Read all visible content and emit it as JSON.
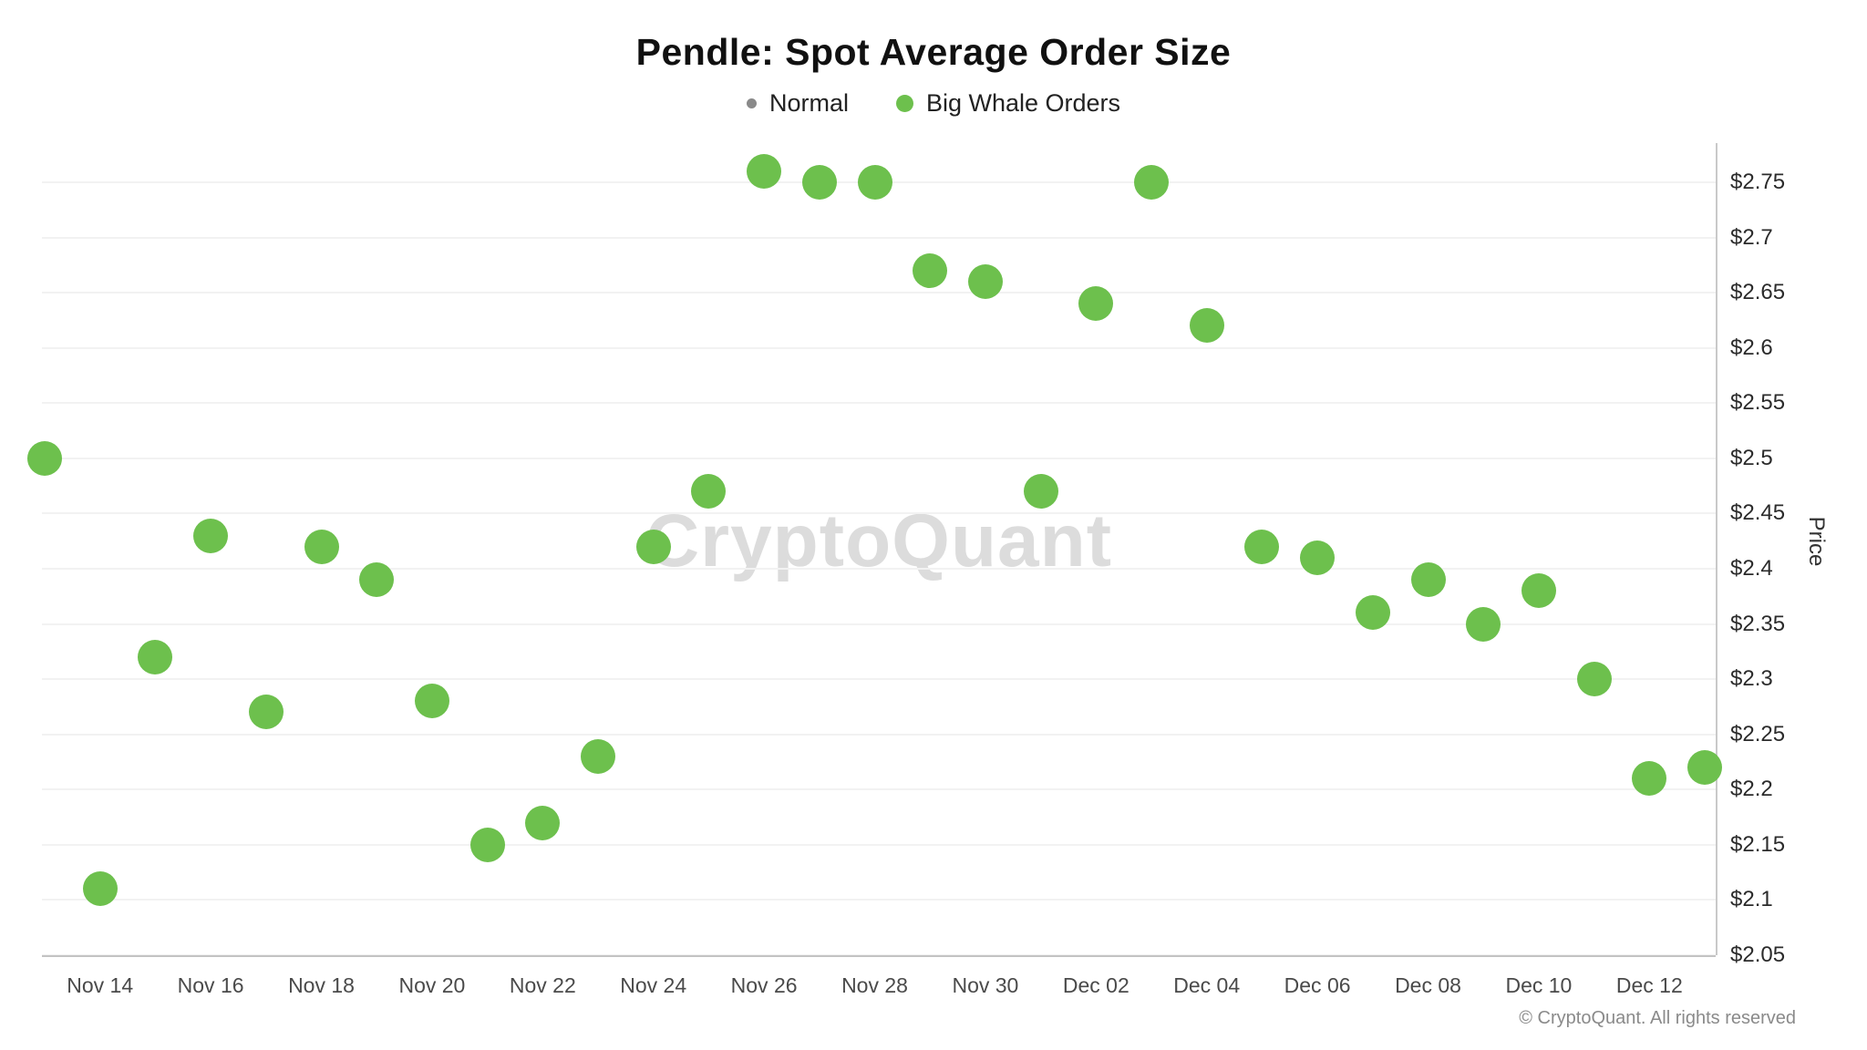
{
  "header": {
    "title": "Pendle: Spot Average Order Size",
    "legend": [
      {
        "label": "Normal",
        "color": "#8a8a8a"
      },
      {
        "label": "Big Whale Orders",
        "color": "#6dc04d"
      }
    ]
  },
  "watermark": "CryptoQuant",
  "footer": {
    "copyright": "© CryptoQuant. All rights reserved"
  },
  "chart_data": {
    "type": "scatter",
    "title": "Pendle: Spot Average Order Size",
    "xlabel": "",
    "ylabel": "Price",
    "grid": true,
    "legend_position": "top",
    "y_axis": {
      "side": "right",
      "min": 2.05,
      "max": 2.75,
      "tick_step": 0.05,
      "tick_prefix": "$",
      "ticks": [
        {
          "value": 2.75,
          "label": "$2.75"
        },
        {
          "value": 2.7,
          "label": "$2.7"
        },
        {
          "value": 2.65,
          "label": "$2.65"
        },
        {
          "value": 2.6,
          "label": "$2.6"
        },
        {
          "value": 2.55,
          "label": "$2.55"
        },
        {
          "value": 2.5,
          "label": "$2.5"
        },
        {
          "value": 2.45,
          "label": "$2.45"
        },
        {
          "value": 2.4,
          "label": "$2.4"
        },
        {
          "value": 2.35,
          "label": "$2.35"
        },
        {
          "value": 2.3,
          "label": "$2.3"
        },
        {
          "value": 2.25,
          "label": "$2.25"
        },
        {
          "value": 2.2,
          "label": "$2.2"
        },
        {
          "value": 2.15,
          "label": "$2.15"
        },
        {
          "value": 2.1,
          "label": "$2.1"
        },
        {
          "value": 2.05,
          "label": "$2.05"
        }
      ]
    },
    "x_domain": [
      "Nov 13",
      "Nov 14",
      "Nov 15",
      "Nov 16",
      "Nov 17",
      "Nov 18",
      "Nov 19",
      "Nov 20",
      "Nov 21",
      "Nov 22",
      "Nov 23",
      "Nov 24",
      "Nov 25",
      "Nov 26",
      "Nov 27",
      "Nov 28",
      "Nov 29",
      "Nov 30",
      "Dec 01",
      "Dec 02",
      "Dec 03",
      "Dec 04",
      "Dec 05",
      "Dec 06",
      "Dec 07",
      "Dec 08",
      "Dec 09",
      "Dec 10",
      "Dec 11",
      "Dec 12",
      "Dec 13"
    ],
    "x_tick_labels": [
      "Nov 14",
      "Nov 16",
      "Nov 18",
      "Nov 20",
      "Nov 22",
      "Nov 24",
      "Nov 26",
      "Nov 28",
      "Nov 30",
      "Dec 02",
      "Dec 04",
      "Dec 06",
      "Dec 08",
      "Dec 10",
      "Dec 12"
    ],
    "series": [
      {
        "name": "Normal",
        "color": "#8a8a8a",
        "marker_size": 10,
        "points": []
      },
      {
        "name": "Big Whale Orders",
        "color": "#6dc04d",
        "marker_size": 38,
        "points": [
          {
            "date": "Nov 13",
            "price": 2.5
          },
          {
            "date": "Nov 14",
            "price": 2.11
          },
          {
            "date": "Nov 15",
            "price": 2.32
          },
          {
            "date": "Nov 16",
            "price": 2.43
          },
          {
            "date": "Nov 17",
            "price": 2.27
          },
          {
            "date": "Nov 18",
            "price": 2.42
          },
          {
            "date": "Nov 19",
            "price": 2.39
          },
          {
            "date": "Nov 20",
            "price": 2.28
          },
          {
            "date": "Nov 21",
            "price": 2.15
          },
          {
            "date": "Nov 22",
            "price": 2.17
          },
          {
            "date": "Nov 23",
            "price": 2.23
          },
          {
            "date": "Nov 24",
            "price": 2.42
          },
          {
            "date": "Nov 25",
            "price": 2.47
          },
          {
            "date": "Nov 26",
            "price": 2.76
          },
          {
            "date": "Nov 27",
            "price": 2.75
          },
          {
            "date": "Nov 28",
            "price": 2.75
          },
          {
            "date": "Nov 29",
            "price": 2.67
          },
          {
            "date": "Nov 30",
            "price": 2.66
          },
          {
            "date": "Dec 01",
            "price": 2.47
          },
          {
            "date": "Dec 02",
            "price": 2.64
          },
          {
            "date": "Dec 03",
            "price": 2.75
          },
          {
            "date": "Dec 04",
            "price": 2.62
          },
          {
            "date": "Dec 05",
            "price": 2.42
          },
          {
            "date": "Dec 06",
            "price": 2.41
          },
          {
            "date": "Dec 07",
            "price": 2.36
          },
          {
            "date": "Dec 08",
            "price": 2.39
          },
          {
            "date": "Dec 09",
            "price": 2.35
          },
          {
            "date": "Dec 10",
            "price": 2.38
          },
          {
            "date": "Dec 11",
            "price": 2.3
          },
          {
            "date": "Dec 12",
            "price": 2.21
          },
          {
            "date": "Dec 13",
            "price": 2.22
          }
        ]
      }
    ]
  }
}
